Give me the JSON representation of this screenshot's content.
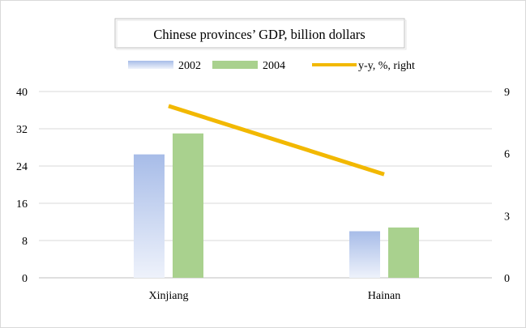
{
  "chart_data": {
    "type": "bar",
    "title": "Chinese provinces’ GDP, billion dollars",
    "categories": [
      "Xinjiang",
      "Hainan"
    ],
    "series": [
      {
        "name": "2002",
        "type": "bar",
        "axis": "left",
        "values": [
          26.5,
          10.0
        ],
        "color": "#aec3ea"
      },
      {
        "name": "2004",
        "type": "bar",
        "axis": "left",
        "values": [
          31.0,
          10.8
        ],
        "color": "#a9d18e"
      },
      {
        "name": "y-y, %, right",
        "type": "line",
        "axis": "right",
        "values": [
          8.3,
          5.0
        ],
        "color": "#f2b800"
      }
    ],
    "y_left": {
      "min": 0,
      "max": 40,
      "ticks": [
        0,
        8,
        16,
        24,
        32,
        40
      ]
    },
    "y_right": {
      "min": 0,
      "max": 9,
      "ticks": [
        0,
        3,
        6,
        9
      ]
    },
    "grid": true,
    "legend_position": "top-center"
  }
}
